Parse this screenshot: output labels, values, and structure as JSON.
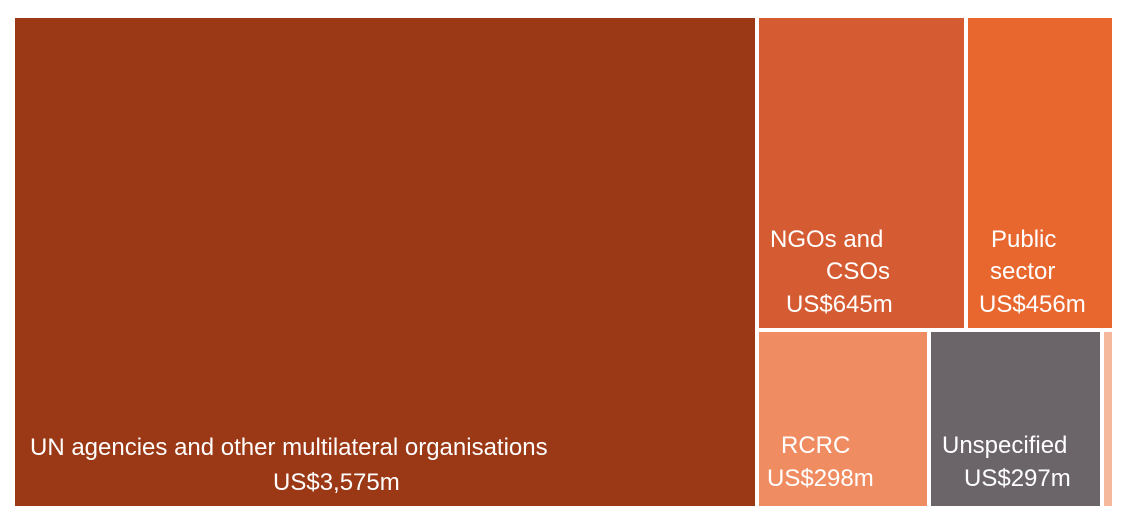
{
  "chart_data": {
    "type": "treemap",
    "title": "",
    "units": "US$ millions",
    "items": [
      {
        "name": "UN agencies and other multilateral organisations",
        "value": 3575,
        "value_label": "US$3,575m",
        "color": "#9b3815"
      },
      {
        "name": "NGOs and CSOs",
        "value": 645,
        "value_label": "US$645m",
        "color": "#d55c32"
      },
      {
        "name": "Public sector",
        "value": 456,
        "value_label": "US$456m",
        "color": "#e8672f"
      },
      {
        "name": "RCRC",
        "value": 298,
        "value_label": "US$298m",
        "color": "#f08c61"
      },
      {
        "name": "Unspecified",
        "value": 297,
        "value_label": "US$297m",
        "color": "#6b6569"
      },
      {
        "name": "",
        "value": null,
        "value_label": "",
        "color": "#f5b89d"
      }
    ],
    "labels": {
      "un_line1": "UN agencies and other multilateral organisations",
      "un_value": "US$3,575m",
      "ngo_line1": "NGOs and",
      "ngo_line2": "CSOs",
      "ngo_value": "US$645m",
      "pub_line1": "Public",
      "pub_line2": "sector",
      "pub_value": "US$456m",
      "rcrc_line1": "RCRC",
      "rcrc_value": "US$298m",
      "unsp_line1": "Unspecified",
      "unsp_value": "US$297m"
    }
  }
}
